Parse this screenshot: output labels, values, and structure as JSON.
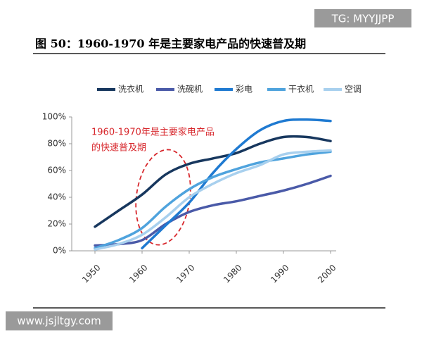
{
  "watermark_top": "TG: MYYJJPP",
  "watermark_bottom": "www.jsjltgy.com",
  "chart_data": {
    "type": "line",
    "title": "图 50：1960-1970 年是主要家电产品的快速普及期",
    "annotation": [
      "1960-1970年是主要家电产品",
      "的快速普及期"
    ],
    "x": [
      1950,
      1955,
      1960,
      1965,
      1970,
      1975,
      1980,
      1985,
      1990,
      1995,
      2000
    ],
    "xlim": [
      1950,
      2000
    ],
    "xticks": [
      1950,
      1960,
      1970,
      1980,
      1990,
      2000
    ],
    "ylim": [
      0,
      100
    ],
    "yticks": [
      {
        "value": 0,
        "label": "0%"
      },
      {
        "value": 20,
        "label": "20%"
      },
      {
        "value": 40,
        "label": "40%"
      },
      {
        "value": 60,
        "label": "60%"
      },
      {
        "value": 80,
        "label": "80%"
      },
      {
        "value": 100,
        "label": "100%"
      }
    ],
    "series": [
      {
        "name": "洗衣机",
        "color": "#17375e",
        "values": [
          18,
          30,
          42,
          57,
          65,
          69,
          73,
          80,
          85,
          85,
          82
        ]
      },
      {
        "name": "洗碗机",
        "color": "#4a5aa8",
        "values": [
          4,
          5,
          8,
          20,
          29,
          34,
          37,
          41,
          45,
          50,
          56
        ]
      },
      {
        "name": "彩电",
        "color": "#1f7ad1",
        "values": [
          null,
          null,
          2,
          19,
          36,
          58,
          76,
          90,
          97,
          98,
          97
        ]
      },
      {
        "name": "干衣机",
        "color": "#4fa3dd",
        "values": [
          2,
          8,
          17,
          33,
          46,
          55,
          61,
          66,
          69,
          72,
          74
        ]
      },
      {
        "name": "空调",
        "color": "#a8d0ee",
        "values": [
          1,
          5,
          12,
          25,
          40,
          50,
          58,
          64,
          72,
          74,
          75
        ]
      }
    ]
  }
}
